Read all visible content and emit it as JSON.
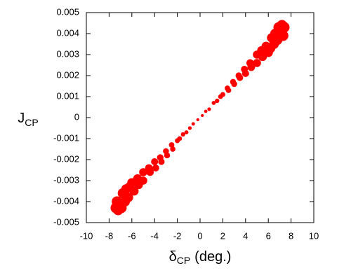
{
  "chart_data": {
    "type": "scatter",
    "ylabel": "J",
    "ylabel_sub": "CP",
    "xlabel": "δ",
    "xlabel_sub": "CP",
    "xlabel_unit": "(deg.)",
    "color": "#ff0000",
    "x": [
      -7.4,
      -7.2,
      -7.3,
      -7.0,
      -6.8,
      -6.9,
      -6.5,
      -6.6,
      -6.2,
      -6.3,
      -6.0,
      -5.8,
      -5.5,
      -5.4,
      -5.0,
      -5.0,
      -4.5,
      -4.4,
      -4.0,
      -3.9,
      -3.5,
      -3.4,
      -3.0,
      -2.9,
      -2.5,
      -2.4,
      -2.0,
      -1.8,
      -1.5,
      -1.2,
      -0.9,
      -0.6,
      -0.2,
      0.2,
      0.5,
      0.8,
      1.2,
      1.5,
      1.8,
      2.0,
      2.4,
      2.5,
      2.9,
      3.0,
      3.4,
      3.5,
      3.9,
      4.0,
      4.4,
      4.5,
      5.0,
      5.0,
      5.4,
      5.5,
      5.8,
      6.0,
      6.3,
      6.2,
      6.6,
      6.5,
      6.9,
      6.8,
      7.2,
      7.0,
      7.4,
      7.3
    ],
    "values": [
      -0.0043,
      -0.0044,
      -0.004,
      -0.0042,
      -0.0036,
      -0.0043,
      -0.0034,
      -0.004,
      -0.0033,
      -0.0038,
      -0.0031,
      -0.0035,
      -0.0029,
      -0.0032,
      -0.0026,
      -0.003,
      -0.0024,
      -0.0026,
      -0.0021,
      -0.0024,
      -0.0019,
      -0.0021,
      -0.0016,
      -0.0018,
      -0.0013,
      -0.0015,
      -0.0011,
      -0.001,
      -0.0008,
      -0.0007,
      -0.0005,
      -0.0003,
      -0.0001,
      0.0001,
      0.0003,
      0.0004,
      0.0007,
      0.0008,
      0.001,
      0.0011,
      0.0014,
      0.0013,
      0.0017,
      0.0016,
      0.002,
      0.0019,
      0.0023,
      0.0021,
      0.0026,
      0.0024,
      0.003,
      0.0026,
      0.0032,
      0.0029,
      0.0034,
      0.0031,
      0.0038,
      0.0033,
      0.004,
      0.0035,
      0.0043,
      0.0037,
      0.0044,
      0.004,
      0.0043,
      0.0039
    ],
    "xlim": [
      -10,
      10
    ],
    "xticks": [
      -10,
      -8,
      -6,
      -4,
      -2,
      0,
      2,
      4,
      6,
      8,
      10
    ],
    "ylim": [
      -0.005,
      0.005
    ],
    "yticks": [
      -0.005,
      -0.004,
      -0.003,
      -0.002,
      -0.001,
      0,
      0.001,
      0.002,
      0.003,
      0.004,
      0.005
    ]
  }
}
